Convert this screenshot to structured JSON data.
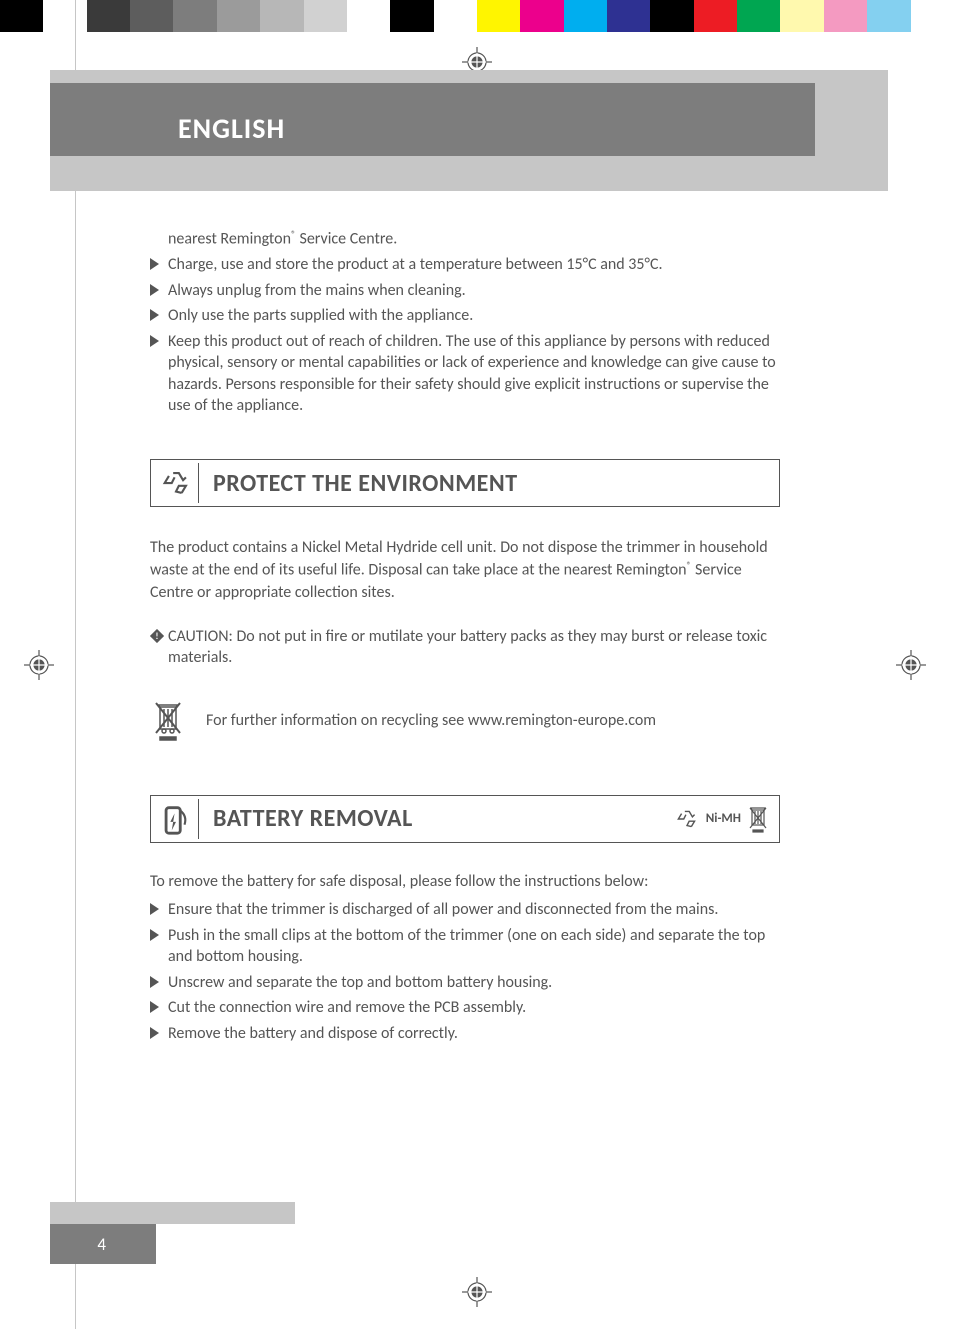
{
  "colorbar": [
    "#000000",
    "#ffffff",
    "#3a3a3a",
    "#5d5d5d",
    "#7d7d7d",
    "#9b9b9b",
    "#b7b7b7",
    "#d1d1d1",
    "#ffffff",
    "#000000",
    "#ffffff",
    "#fff500",
    "#ec008c",
    "#00aeef",
    "#2e3192",
    "#000000",
    "#ed1c24",
    "#00a651",
    "#fff9ae",
    "#f49ac1",
    "#84d0f0",
    "#ffffff"
  ],
  "header": {
    "language": "ENGLISH"
  },
  "intro_line": "nearest Remington® Service Centre.",
  "top_bullets": [
    "Charge, use and store the product at a temperature between 15°C and 35°C.",
    "Always unplug from the mains when cleaning.",
    "Only use the parts supplied with the appliance.",
    "Keep this product out of reach of children. The use of this appliance by persons with reduced physical, sensory or mental capabilities or lack of experience and knowledge can give cause to hazards. Persons responsible for their safety should give explicit instructions or supervise the use of the appliance."
  ],
  "section1": {
    "title": "PROTECT THE ENVIRONMENT",
    "para": "The product contains a Nickel Metal Hydride cell unit. Do not dispose the trimmer in household waste at the end of its useful life. Disposal can take place at the nearest Remington® Service Centre or appropriate collection sites.",
    "caution": "CAUTION: Do not put in fire or mutilate your battery packs as they may burst or release toxic materials.",
    "recycle_text": "For further information on recycling see  www.remington-europe.com"
  },
  "section2": {
    "title": "BATTERY REMOVAL",
    "badge": "Ni-MH",
    "intro": "To remove the battery for safe disposal, please follow the instructions below:",
    "bullets": [
      "Ensure that the trimmer is discharged of all power and disconnected from the mains.",
      "Push in the small clips at the bottom of the trimmer (one on each side) and separate the top and bottom housing.",
      "Unscrew and separate the top and bottom battery housing.",
      "Cut the connection wire and remove the PCB assembly.",
      "Remove the battery and dispose of correctly."
    ]
  },
  "page_number": "4"
}
